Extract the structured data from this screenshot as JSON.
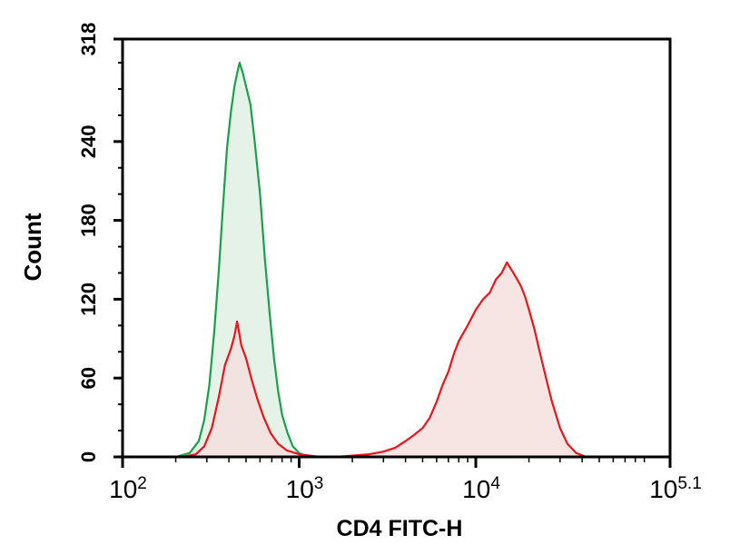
{
  "chart_data": {
    "type": "area",
    "xlabel": "CD4 FITC-H",
    "ylabel": "Count",
    "x_scale": "log10",
    "xlim": [
      100,
      125893
    ],
    "ylim": [
      0,
      318
    ],
    "x_ticks": [
      {
        "base": "10",
        "exp": "2",
        "value": 100
      },
      {
        "base": "10",
        "exp": "3",
        "value": 1000
      },
      {
        "base": "10",
        "exp": "4",
        "value": 10000
      },
      {
        "base": "10",
        "exp": "5.1",
        "value": 125893
      }
    ],
    "y_ticks": [
      "0",
      "60",
      "120",
      "180",
      "240",
      "318"
    ],
    "y_tick_values": [
      0,
      60,
      120,
      180,
      240,
      318
    ],
    "series": [
      {
        "color": "#1aa04a",
        "fill": "#dff0e3",
        "points": [
          [
            200,
            0
          ],
          [
            240,
            3
          ],
          [
            270,
            12
          ],
          [
            290,
            28
          ],
          [
            310,
            55
          ],
          [
            330,
            95
          ],
          [
            350,
            140
          ],
          [
            370,
            190
          ],
          [
            390,
            235
          ],
          [
            410,
            262
          ],
          [
            430,
            282
          ],
          [
            450,
            295
          ],
          [
            460,
            300
          ],
          [
            480,
            292
          ],
          [
            500,
            282
          ],
          [
            530,
            268
          ],
          [
            560,
            240
          ],
          [
            600,
            200
          ],
          [
            640,
            150
          ],
          [
            680,
            110
          ],
          [
            720,
            75
          ],
          [
            760,
            50
          ],
          [
            800,
            32
          ],
          [
            860,
            18
          ],
          [
            920,
            8
          ],
          [
            1000,
            3
          ],
          [
            1120,
            0
          ]
        ]
      },
      {
        "color": "#e8151b",
        "fill": "#f6e1de",
        "points": [
          [
            220,
            0
          ],
          [
            260,
            2
          ],
          [
            290,
            8
          ],
          [
            320,
            22
          ],
          [
            350,
            45
          ],
          [
            380,
            70
          ],
          [
            410,
            82
          ],
          [
            430,
            92
          ],
          [
            445,
            103
          ],
          [
            455,
            96
          ],
          [
            470,
            85
          ],
          [
            500,
            75
          ],
          [
            540,
            58
          ],
          [
            580,
            44
          ],
          [
            630,
            30
          ],
          [
            690,
            18
          ],
          [
            760,
            10
          ],
          [
            850,
            5
          ],
          [
            1000,
            2
          ],
          [
            1300,
            0
          ],
          [
            1600,
            0
          ],
          [
            2000,
            1
          ],
          [
            2500,
            2
          ],
          [
            3000,
            4
          ],
          [
            3500,
            7
          ],
          [
            4000,
            12
          ],
          [
            4500,
            17
          ],
          [
            5000,
            22
          ],
          [
            5500,
            30
          ],
          [
            6000,
            42
          ],
          [
            6500,
            55
          ],
          [
            7000,
            65
          ],
          [
            7500,
            78
          ],
          [
            8000,
            88
          ],
          [
            9000,
            100
          ],
          [
            10000,
            112
          ],
          [
            11000,
            120
          ],
          [
            12000,
            125
          ],
          [
            13000,
            135
          ],
          [
            14000,
            140
          ],
          [
            15000,
            148
          ],
          [
            16000,
            142
          ],
          [
            17000,
            136
          ],
          [
            18000,
            130
          ],
          [
            19000,
            122
          ],
          [
            20000,
            112
          ],
          [
            21500,
            97
          ],
          [
            23000,
            80
          ],
          [
            25000,
            60
          ],
          [
            27000,
            42
          ],
          [
            30000,
            22
          ],
          [
            33000,
            10
          ],
          [
            37000,
            3
          ],
          [
            42000,
            0
          ]
        ]
      }
    ]
  }
}
